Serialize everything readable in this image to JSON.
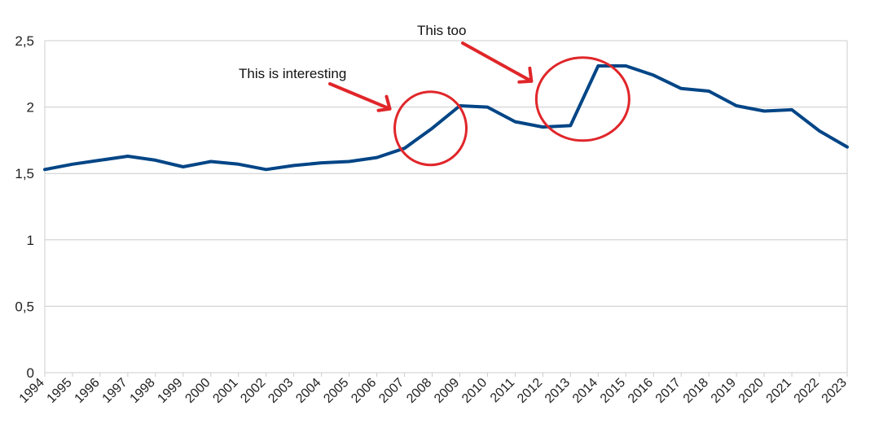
{
  "chart_data": {
    "type": "line",
    "title": "",
    "xlabel": "",
    "ylabel": "",
    "x": [
      "1994",
      "1995",
      "1996",
      "1997",
      "1998",
      "1999",
      "2000",
      "2001",
      "2002",
      "2003",
      "2004",
      "2005",
      "2006",
      "2007",
      "2008",
      "2009",
      "2010",
      "2011",
      "2012",
      "2013",
      "2014",
      "2015",
      "2016",
      "2017",
      "2018",
      "2019",
      "2020",
      "2021",
      "2022",
      "2023"
    ],
    "series": [
      {
        "values": [
          1.53,
          1.57,
          1.6,
          1.63,
          1.6,
          1.55,
          1.59,
          1.57,
          1.53,
          1.56,
          1.58,
          1.59,
          1.62,
          1.69,
          1.84,
          2.01,
          2.0,
          1.89,
          1.85,
          1.86,
          2.31,
          2.31,
          2.24,
          2.14,
          2.12,
          2.01,
          1.97,
          1.98,
          1.82,
          1.7
        ],
        "color": "#004586"
      }
    ],
    "ylim": [
      0,
      2.5
    ],
    "yticks": [
      "0",
      "0,5",
      "1",
      "1,5",
      "2",
      "2,5"
    ],
    "grid": true,
    "annotations": [
      {
        "text": "This is interesting",
        "target_x": "2008",
        "target_y": 1.84
      },
      {
        "text": "This too",
        "target_x": "2013",
        "target_y": 2.06
      }
    ],
    "annotation_color": "#e0262a",
    "gridline_color": "#cccccc"
  }
}
